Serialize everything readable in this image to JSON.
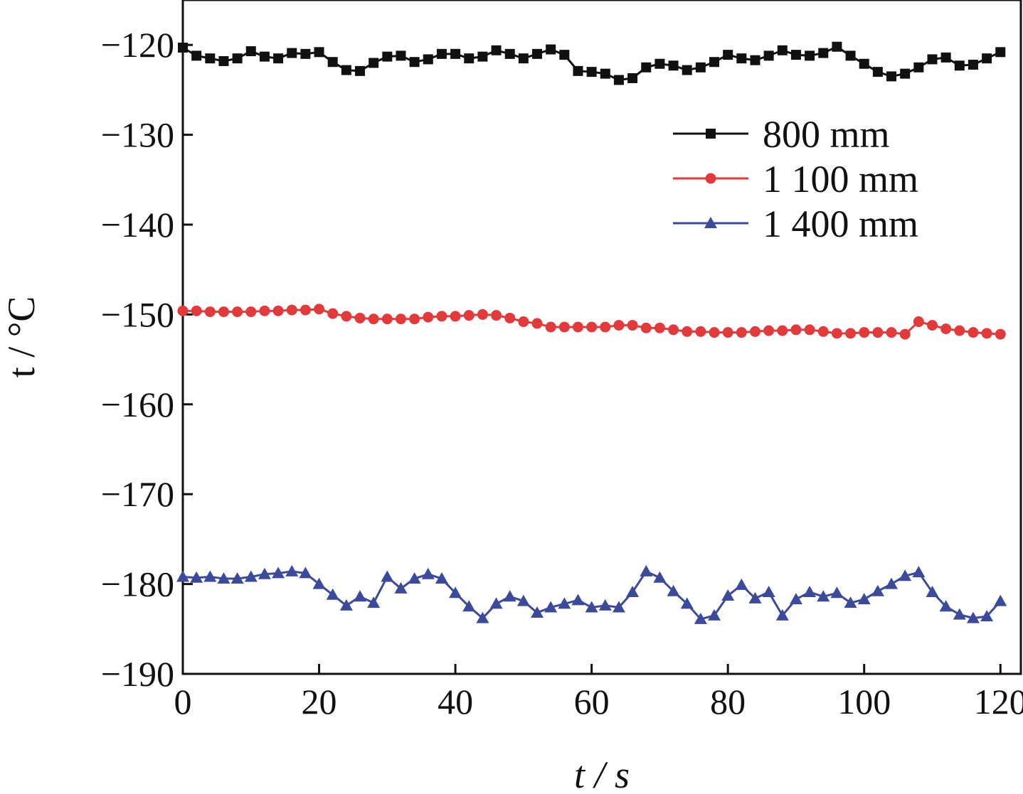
{
  "chart_data": {
    "type": "line",
    "title": "",
    "xlabel": "t / s",
    "ylabel": "t / °C",
    "xlim": [
      0,
      123
    ],
    "ylim": [
      -190,
      -115
    ],
    "xticks": [
      0,
      20,
      40,
      60,
      80,
      100,
      120
    ],
    "yticks": [
      -120,
      -130,
      -140,
      -150,
      -160,
      -170,
      -180,
      -190
    ],
    "grid": false,
    "legend_position": "top-right",
    "series": [
      {
        "name": "800 mm",
        "color": "#111111",
        "marker": "square",
        "x": [
          0,
          2,
          4,
          6,
          8,
          10,
          12,
          14,
          16,
          18,
          20,
          22,
          24,
          26,
          28,
          30,
          32,
          34,
          36,
          38,
          40,
          42,
          44,
          46,
          48,
          50,
          52,
          54,
          56,
          58,
          60,
          62,
          64,
          66,
          68,
          70,
          72,
          74,
          76,
          78,
          80,
          82,
          84,
          86,
          88,
          90,
          92,
          94,
          96,
          98,
          100,
          102,
          104,
          106,
          108,
          110,
          112,
          114,
          116,
          118,
          120
        ],
        "y": [
          -120.3,
          -121.2,
          -121.5,
          -121.8,
          -121.5,
          -120.7,
          -121.3,
          -121.5,
          -120.9,
          -121.0,
          -120.8,
          -121.9,
          -122.8,
          -122.9,
          -122.0,
          -121.3,
          -121.2,
          -121.9,
          -121.6,
          -121.0,
          -121.0,
          -121.5,
          -121.3,
          -120.6,
          -121.0,
          -121.5,
          -121.0,
          -120.5,
          -121.1,
          -122.9,
          -123.0,
          -123.2,
          -123.9,
          -123.7,
          -122.5,
          -122.1,
          -122.3,
          -122.8,
          -122.5,
          -121.9,
          -121.1,
          -121.5,
          -121.7,
          -121.2,
          -120.6,
          -121.1,
          -121.2,
          -120.9,
          -120.2,
          -121.2,
          -122.1,
          -123.0,
          -123.5,
          -123.2,
          -122.5,
          -121.6,
          -121.4,
          -122.3,
          -122.2,
          -121.5,
          -120.8
        ]
      },
      {
        "name": "1 100 mm",
        "color": "#e23a3a",
        "marker": "circle",
        "x": [
          0,
          2,
          4,
          6,
          8,
          10,
          12,
          14,
          16,
          18,
          20,
          22,
          24,
          26,
          28,
          30,
          32,
          34,
          36,
          38,
          40,
          42,
          44,
          46,
          48,
          50,
          52,
          54,
          56,
          58,
          60,
          62,
          64,
          66,
          68,
          70,
          72,
          74,
          76,
          78,
          80,
          82,
          84,
          86,
          88,
          90,
          92,
          94,
          96,
          98,
          100,
          102,
          104,
          106,
          108,
          110,
          112,
          114,
          116,
          118,
          120
        ],
        "y": [
          -149.6,
          -149.6,
          -149.7,
          -149.7,
          -149.7,
          -149.7,
          -149.6,
          -149.6,
          -149.5,
          -149.5,
          -149.4,
          -149.9,
          -150.2,
          -150.4,
          -150.5,
          -150.5,
          -150.5,
          -150.5,
          -150.3,
          -150.2,
          -150.2,
          -150.1,
          -150.0,
          -150.1,
          -150.4,
          -150.8,
          -151.0,
          -151.4,
          -151.4,
          -151.4,
          -151.4,
          -151.4,
          -151.2,
          -151.2,
          -151.5,
          -151.5,
          -151.7,
          -151.9,
          -151.9,
          -152.0,
          -152.0,
          -152.0,
          -151.9,
          -151.8,
          -151.8,
          -151.7,
          -151.7,
          -151.9,
          -152.1,
          -152.1,
          -152.0,
          -152.0,
          -152.0,
          -152.2,
          -150.8,
          -151.2,
          -151.6,
          -151.8,
          -152.0,
          -152.1,
          -152.2
        ]
      },
      {
        "name": "1 400 mm",
        "color": "#3b4a9a",
        "marker": "triangle",
        "x": [
          0,
          2,
          4,
          6,
          8,
          10,
          12,
          14,
          16,
          18,
          20,
          22,
          24,
          26,
          28,
          30,
          32,
          34,
          36,
          38,
          40,
          42,
          44,
          46,
          48,
          50,
          52,
          54,
          56,
          58,
          60,
          62,
          64,
          66,
          68,
          70,
          72,
          74,
          76,
          78,
          80,
          82,
          84,
          86,
          88,
          90,
          92,
          94,
          96,
          98,
          100,
          102,
          104,
          106,
          108,
          110,
          112,
          114,
          116,
          118,
          120
        ],
        "y": [
          -179.2,
          -179.3,
          -179.2,
          -179.4,
          -179.4,
          -179.2,
          -178.9,
          -178.8,
          -178.6,
          -178.8,
          -180.0,
          -181.2,
          -182.4,
          -181.4,
          -182.1,
          -179.2,
          -180.5,
          -179.4,
          -178.9,
          -179.4,
          -181.0,
          -182.5,
          -183.8,
          -182.2,
          -181.4,
          -181.9,
          -183.2,
          -182.6,
          -182.2,
          -181.8,
          -182.6,
          -182.4,
          -182.6,
          -180.9,
          -178.6,
          -179.3,
          -180.8,
          -182.2,
          -183.9,
          -183.5,
          -181.3,
          -180.1,
          -181.6,
          -180.9,
          -183.5,
          -181.7,
          -180.9,
          -181.4,
          -181.0,
          -182.1,
          -181.7,
          -180.8,
          -180.0,
          -179.1,
          -178.7,
          -180.9,
          -182.5,
          -183.4,
          -183.8,
          -183.6,
          -181.9
        ]
      }
    ]
  }
}
